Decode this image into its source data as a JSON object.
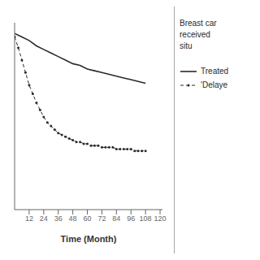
{
  "chart_data": {
    "type": "line",
    "xlabel": "Time (Month)",
    "legend_title": "Breast car\nreceived\nsitu",
    "xlim": [
      0,
      122
    ],
    "xticks": [
      12,
      24,
      36,
      48,
      60,
      72,
      84,
      96,
      108,
      120
    ],
    "ylim": [
      0.0,
      1.05
    ],
    "tick_labels": "x",
    "grid": false,
    "legend": "right",
    "series": [
      {
        "name": "Treated",
        "color": "#2a2a2a",
        "line_style": "solid",
        "marker": "none",
        "x": [
          0,
          6,
          12,
          18,
          24,
          30,
          36,
          42,
          48,
          54,
          60,
          66,
          72,
          78,
          84,
          90,
          96,
          102,
          108
        ],
        "values": [
          0.99,
          0.97,
          0.95,
          0.92,
          0.9,
          0.88,
          0.86,
          0.84,
          0.82,
          0.81,
          0.79,
          0.78,
          0.77,
          0.76,
          0.75,
          0.74,
          0.73,
          0.72,
          0.71
        ]
      },
      {
        "name": "'Delaye",
        "color": "#2a2a2a",
        "line_style": "dashed",
        "marker": "dot",
        "x": [
          0,
          3,
          6,
          9,
          12,
          15,
          18,
          21,
          24,
          27,
          30,
          33,
          36,
          39,
          42,
          45,
          48,
          51,
          54,
          57,
          60,
          63,
          66,
          69,
          72,
          75,
          78,
          81,
          84,
          87,
          90,
          93,
          96,
          99,
          102,
          105,
          108
        ],
        "values": [
          0.97,
          0.91,
          0.84,
          0.77,
          0.7,
          0.65,
          0.6,
          0.56,
          0.52,
          0.49,
          0.47,
          0.45,
          0.43,
          0.42,
          0.41,
          0.4,
          0.39,
          0.38,
          0.38,
          0.37,
          0.37,
          0.36,
          0.36,
          0.36,
          0.35,
          0.35,
          0.35,
          0.35,
          0.34,
          0.34,
          0.34,
          0.34,
          0.34,
          0.33,
          0.33,
          0.33,
          0.33
        ]
      }
    ]
  }
}
